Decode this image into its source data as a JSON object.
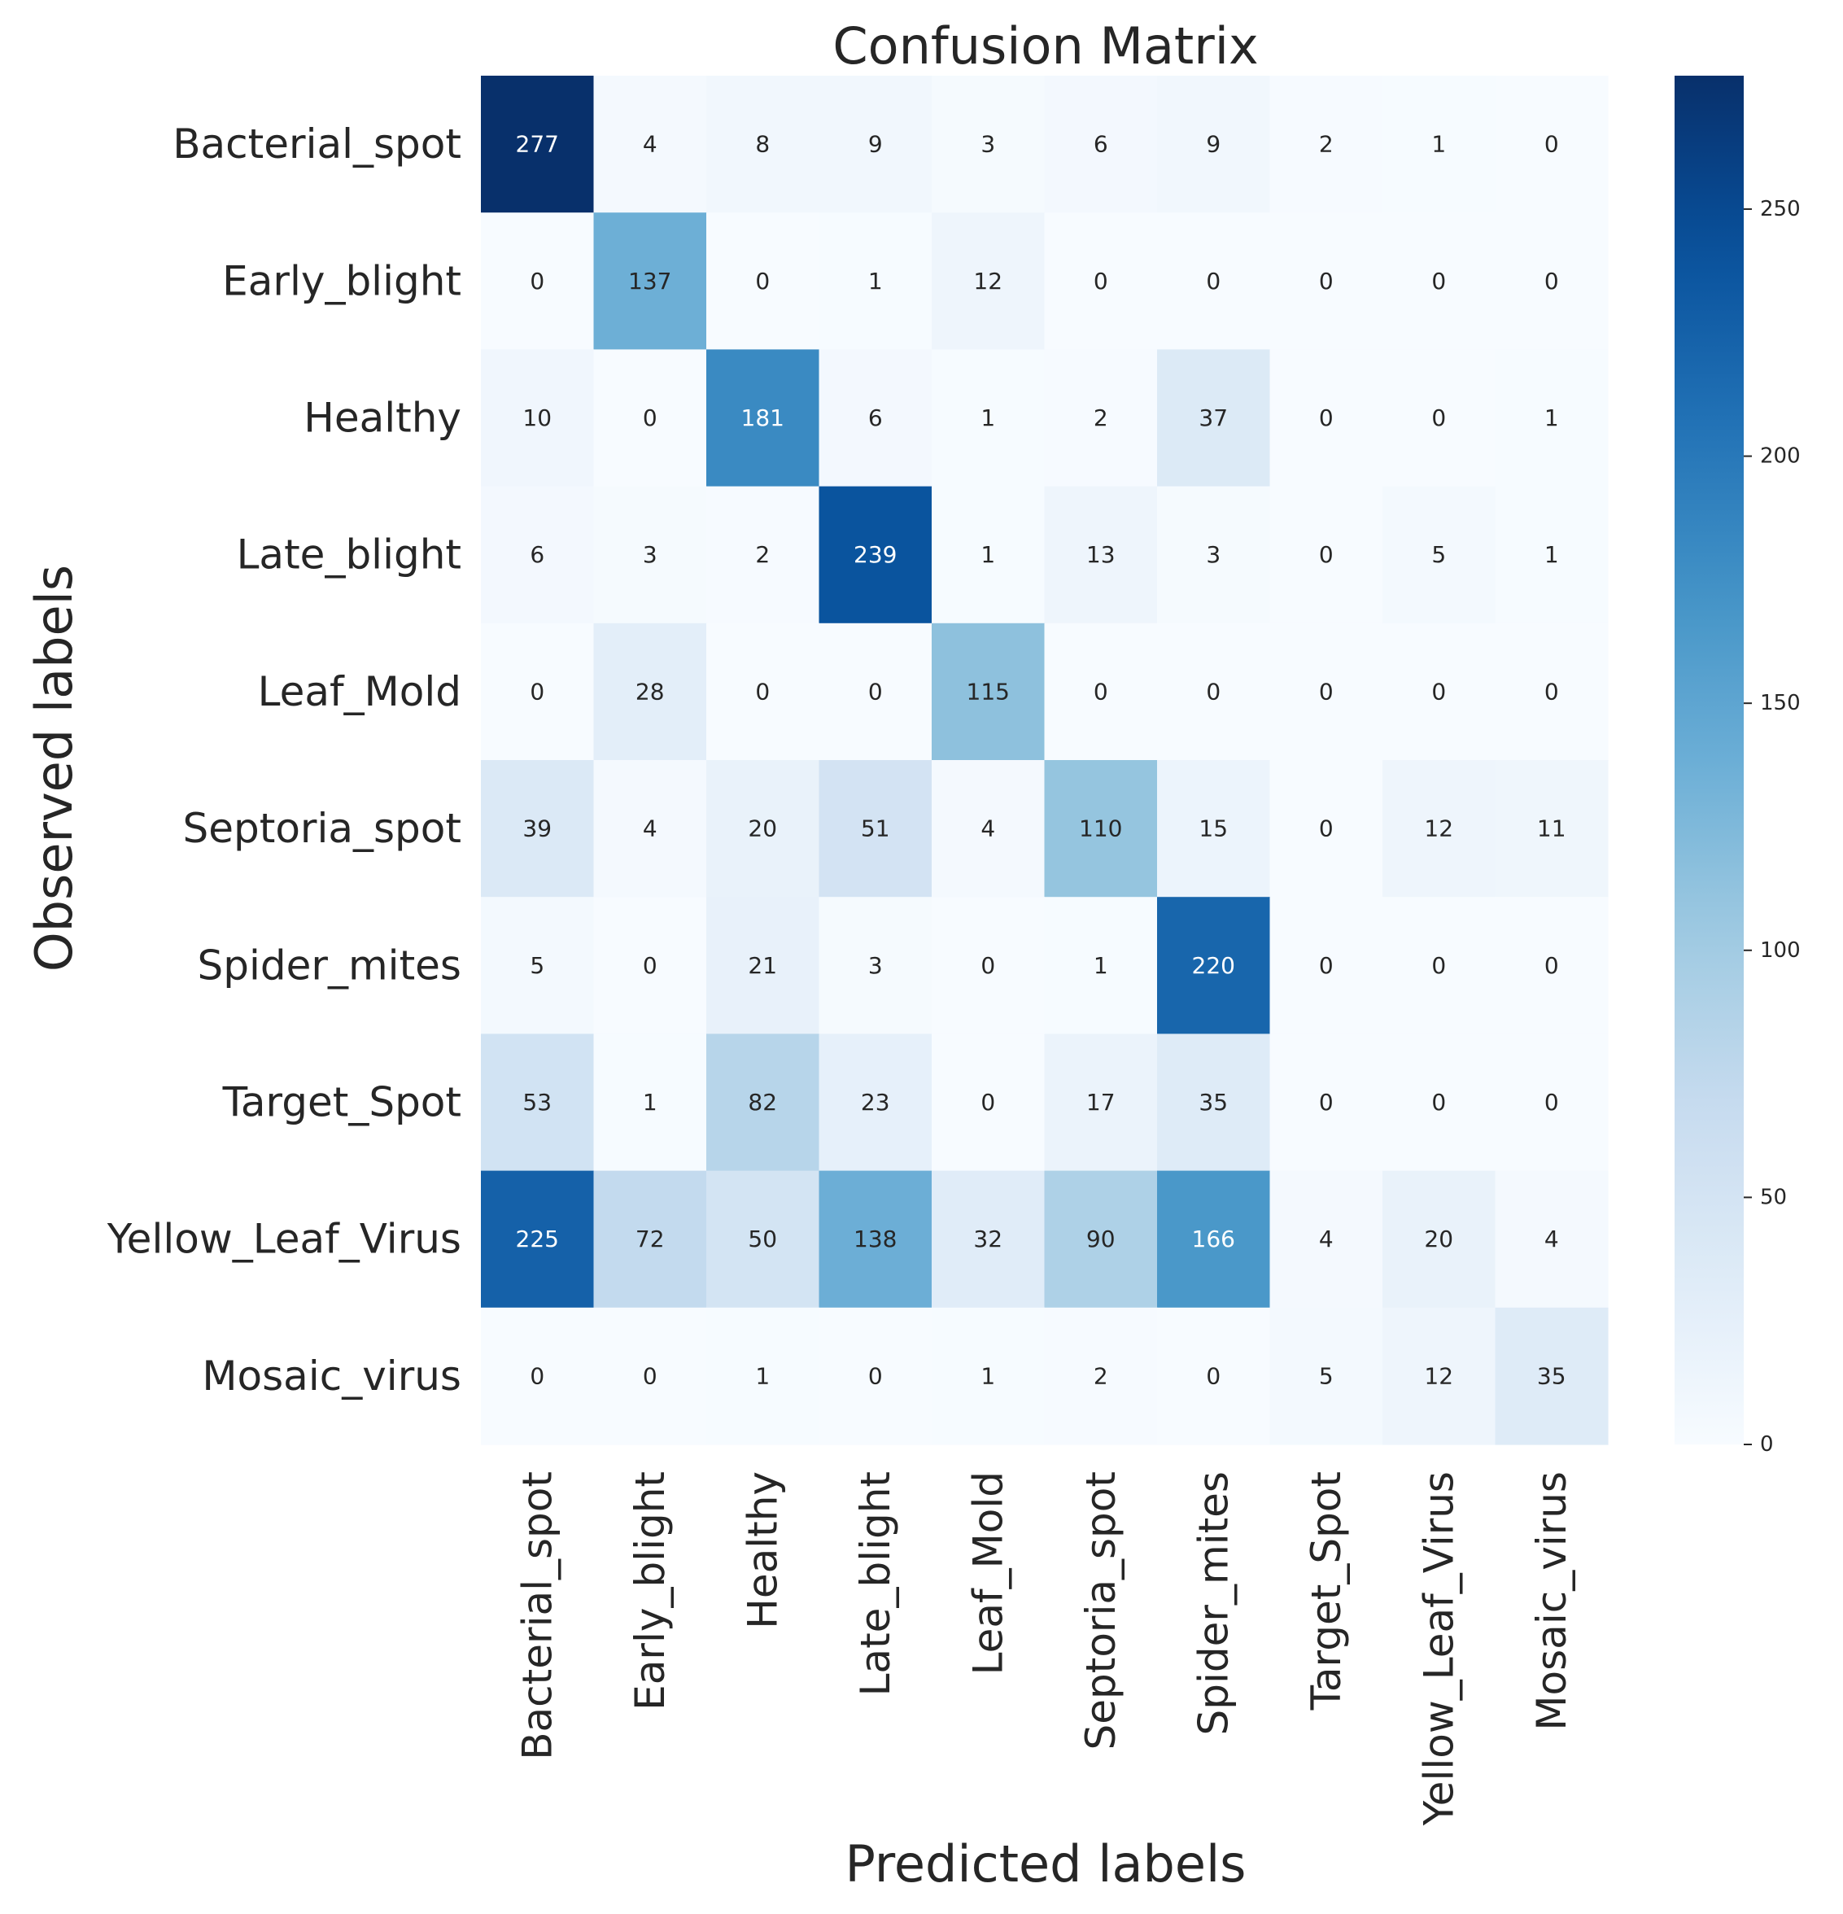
{
  "chart_data": {
    "type": "heatmap",
    "title": "Confusion Matrix",
    "xlabel": "Predicted labels",
    "ylabel": "Observed labels",
    "row_labels": [
      "Bacterial_spot",
      "Early_blight",
      "Healthy",
      "Late_blight",
      "Leaf_Mold",
      "Septoria_spot",
      "Spider_mites",
      "Target_Spot",
      "Yellow_Leaf_Virus",
      "Mosaic_virus"
    ],
    "col_labels": [
      "Bacterial_spot",
      "Early_blight",
      "Healthy",
      "Late_blight",
      "Leaf_Mold",
      "Septoria_spot",
      "Spider_mites",
      "Target_Spot",
      "Yellow_Leaf_Virus",
      "Mosaic_virus"
    ],
    "values": [
      [
        277,
        4,
        8,
        9,
        3,
        6,
        9,
        2,
        1,
        0
      ],
      [
        0,
        137,
        0,
        1,
        12,
        0,
        0,
        0,
        0,
        0
      ],
      [
        10,
        0,
        181,
        6,
        1,
        2,
        37,
        0,
        0,
        1
      ],
      [
        6,
        3,
        2,
        239,
        1,
        13,
        3,
        0,
        5,
        1
      ],
      [
        0,
        28,
        0,
        0,
        115,
        0,
        0,
        0,
        0,
        0
      ],
      [
        39,
        4,
        20,
        51,
        4,
        110,
        15,
        0,
        12,
        11
      ],
      [
        5,
        0,
        21,
        3,
        0,
        1,
        220,
        0,
        0,
        0
      ],
      [
        53,
        1,
        82,
        23,
        0,
        17,
        35,
        0,
        0,
        0
      ],
      [
        225,
        72,
        50,
        138,
        32,
        90,
        166,
        4,
        20,
        4
      ],
      [
        0,
        0,
        1,
        0,
        1,
        2,
        0,
        5,
        12,
        35
      ]
    ],
    "vmin": 0,
    "vmax": 277,
    "colormap": "Blues",
    "colorbar_ticks": [
      0,
      50,
      100,
      150,
      200,
      250
    ]
  }
}
